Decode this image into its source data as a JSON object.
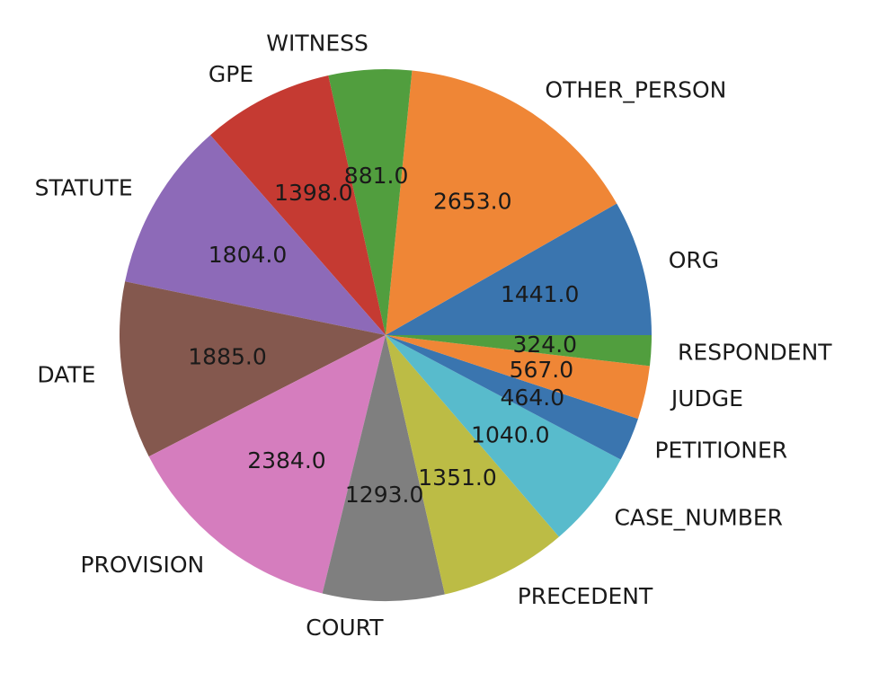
{
  "chart_data": {
    "type": "pie",
    "categories": [
      "ORG",
      "OTHER_PERSON",
      "WITNESS",
      "GPE",
      "STATUTE",
      "DATE",
      "PROVISION",
      "COURT",
      "PRECEDENT",
      "CASE_NUMBER",
      "PETITIONER",
      "JUDGE",
      "RESPONDENT"
    ],
    "values": [
      1441.0,
      2653.0,
      881.0,
      1398.0,
      1804.0,
      1885.0,
      2384.0,
      1293.0,
      1351.0,
      1040.0,
      464.0,
      567.0,
      324.0
    ],
    "value_labels": [
      "1441.0",
      "2653.0",
      "881.0",
      "1398.0",
      "1804.0",
      "1885.0",
      "2384.0",
      "1293.0",
      "1351.0",
      "1040.0",
      "464.0",
      "567.0",
      "324.0"
    ],
    "colors": [
      "#3a75af",
      "#ef8636",
      "#519e3e",
      "#c53a32",
      "#8d6ab8",
      "#84584e",
      "#d57dbe",
      "#7f7f7f",
      "#bcbc45",
      "#58bbcc",
      "#3a75af",
      "#ef8636",
      "#519e3e"
    ],
    "start_angle": 0,
    "direction": "counterclockwise",
    "title": "",
    "legend": "none"
  }
}
